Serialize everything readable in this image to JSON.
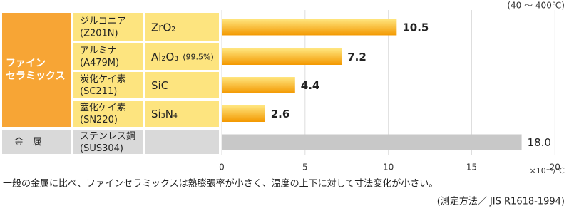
{
  "chart_data": {
    "type": "bar",
    "orientation": "horizontal",
    "condition": "(40 ～ 400℃)",
    "groups": [
      {
        "lines": [
          "ファイン",
          "セラミックス"
        ],
        "rows": [
          0,
          1,
          2,
          3
        ],
        "color": "#f7a535"
      },
      {
        "lines": [
          "金　属"
        ],
        "rows": [
          4
        ],
        "color": "#d9d9d9"
      }
    ],
    "categories": [
      "ジルコニア",
      "アルミナ",
      "炭化ケイ素",
      "窒化ケイ素",
      "ステンレス鋼"
    ],
    "codes": [
      "(Z201N)",
      "(A479M)",
      "(SC211)",
      "(SN220)",
      "(SUS304)"
    ],
    "formulas": [
      "ZrO₂",
      "Al₂O₃",
      "SiC",
      "Si₃N₄",
      null
    ],
    "formula_note": {
      "row": 1,
      "text": "(99.5%)"
    },
    "values": [
      10.5,
      7.2,
      4.4,
      2.6,
      18.0
    ],
    "value_labels": [
      "10.5",
      "7.2",
      "4.4",
      "2.6",
      "18.0"
    ],
    "colors": [
      "#f39800",
      "#f39800",
      "#f39800",
      "#f39800",
      "#c8c8c8"
    ],
    "xlim": [
      0,
      20.8
    ],
    "xticks": [
      0,
      5,
      10,
      15,
      20
    ],
    "grid": true,
    "unit": "×10⁻⁶/℃",
    "footnote": "一般の金属に比べ、ファインセラミックスは熱膨張率が小さく、温度の上下に対して寸法変化が小さい。",
    "source": "(測定方法／ JIS R1618-1994)"
  }
}
